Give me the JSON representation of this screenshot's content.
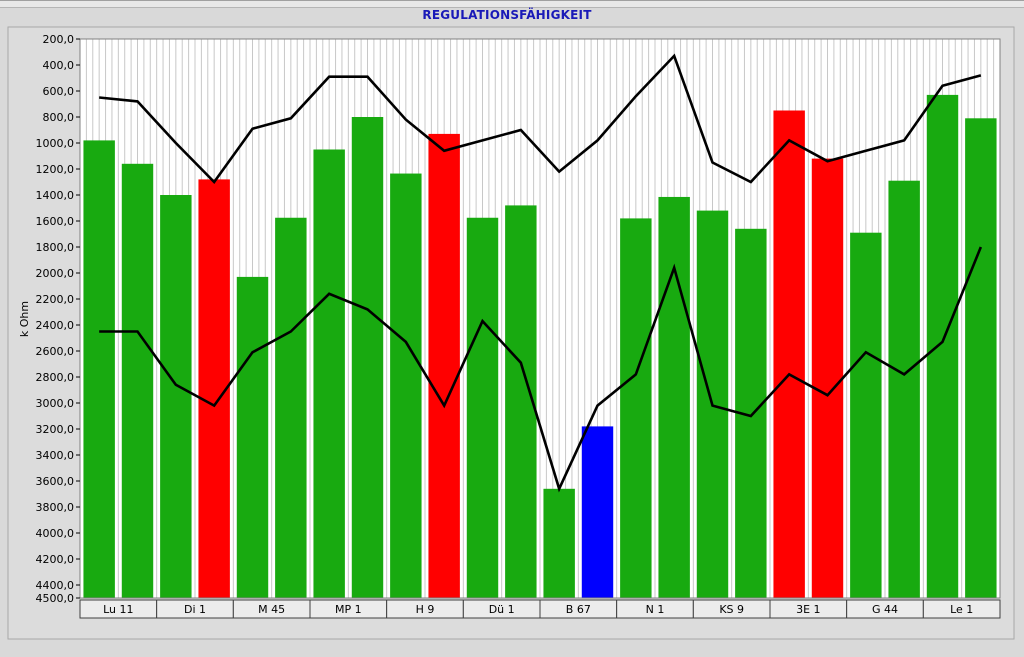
{
  "chart_data": {
    "type": "bar",
    "title": "REGULATIONSFÄHIGKEIT",
    "xlabel": "",
    "ylabel": "k Ohm",
    "y_inverted": true,
    "ylim": [
      200,
      4500
    ],
    "y_ticks": [
      "200,0",
      "400,0",
      "600,0",
      "800,0",
      "1000,0",
      "1200,0",
      "1400,0",
      "1600,0",
      "1800,0",
      "2000,0",
      "2200,0",
      "2400,0",
      "2600,0",
      "2800,0",
      "3000,0",
      "3200,0",
      "3400,0",
      "3600,0",
      "3800,0",
      "4000,0",
      "4200,0",
      "4400,0",
      "4500,0"
    ],
    "groups": [
      "Lu 11",
      "Di 1",
      "M 45",
      "MP 1",
      "H 9",
      "Dü 1",
      "B 67",
      "N 1",
      "KS 9",
      "3E 1",
      "G 44",
      "Le 1"
    ],
    "bars_per_group": 2,
    "grid": true,
    "legend": "none",
    "colors": {
      "normal": "#18aa10",
      "high": "#ff0000",
      "low": "#0000ff",
      "line": "#000000",
      "grid": "#c8c8c8",
      "plot_background": "#ffffff"
    },
    "series": [
      {
        "type": "bar",
        "values": [
          980,
          1160,
          1400,
          1280,
          2030,
          1575,
          1050,
          800,
          1235,
          930,
          1575,
          1480,
          3660,
          3180,
          1580,
          1415,
          1520,
          1660,
          750,
          1120,
          1690,
          1290,
          630,
          810
        ],
        "bar_status": [
          "normal",
          "normal",
          "normal",
          "high",
          "normal",
          "normal",
          "normal",
          "normal",
          "normal",
          "high",
          "normal",
          "normal",
          "normal",
          "low",
          "normal",
          "normal",
          "normal",
          "normal",
          "high",
          "high",
          "normal",
          "normal",
          "normal",
          "normal"
        ]
      },
      {
        "type": "line",
        "values": [
          650,
          680,
          1000,
          1300,
          890,
          810,
          490,
          490,
          820,
          1060,
          980,
          900,
          1220,
          980,
          640,
          330,
          1150,
          1300,
          980,
          1140,
          1060,
          980,
          560,
          480
        ]
      },
      {
        "type": "line",
        "values": [
          2450,
          2450,
          2860,
          3020,
          2610,
          2450,
          2160,
          2280,
          2530,
          3020,
          2370,
          2690,
          3660,
          3020,
          2780,
          1960,
          3020,
          3100,
          2780,
          2940,
          2610,
          2780,
          2530,
          1800
        ]
      }
    ]
  }
}
